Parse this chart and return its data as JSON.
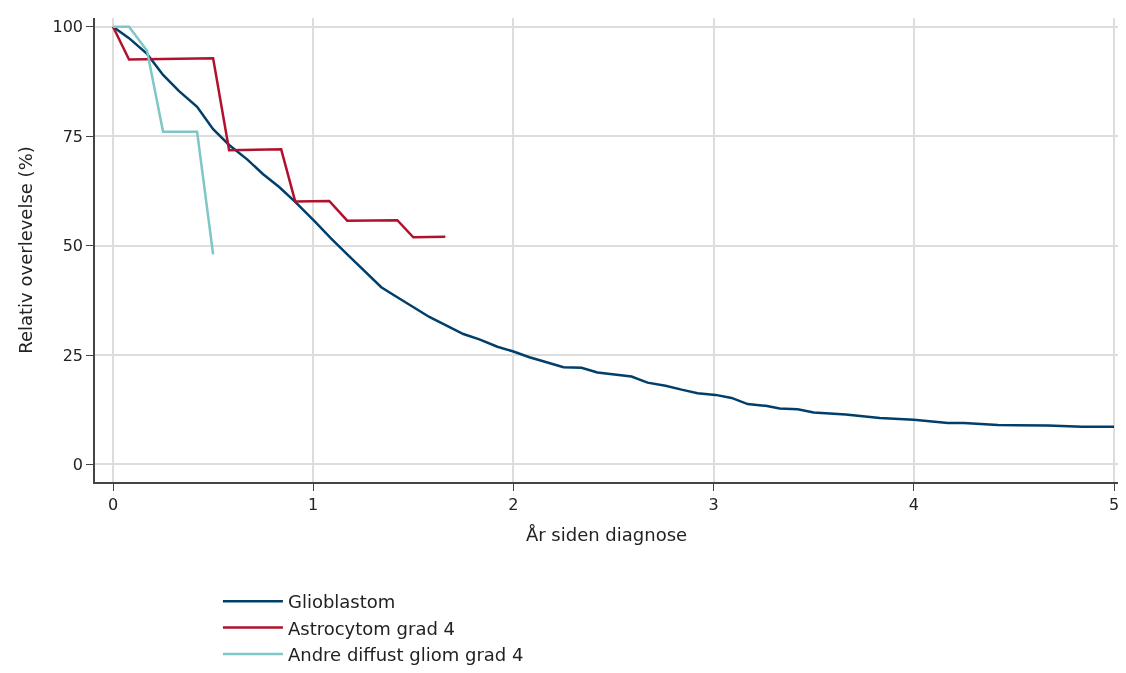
{
  "chart_data": {
    "type": "line",
    "xlabel": "År siden diagnose",
    "ylabel": "Relativ overlevelse (%)",
    "xlim": [
      -0.09,
      5.02
    ],
    "ylim": [
      -4,
      102
    ],
    "xticks": [
      0,
      1,
      2,
      3,
      4,
      5
    ],
    "yticks": [
      0,
      25,
      50,
      75,
      100
    ],
    "grid": true,
    "legend": "bottom",
    "marker": "none",
    "line_style": "solid",
    "series": [
      {
        "name": "Glioblastom",
        "color": "#003f6b",
        "x": [
          0,
          0.08,
          0.17,
          0.25,
          0.33,
          0.42,
          0.5,
          0.58,
          0.67,
          0.75,
          0.83,
          0.91,
          1.01,
          1.09,
          1.17,
          1.34,
          1.41,
          1.58,
          1.75,
          1.83,
          1.92,
          2.0,
          2.08,
          2.17,
          2.25,
          2.34,
          2.42,
          2.59,
          2.67,
          2.76,
          2.84,
          2.92,
          3.01,
          3.09,
          3.17,
          3.26,
          3.33,
          3.42,
          3.5,
          3.66,
          3.83,
          4.0,
          4.17,
          4.25,
          4.42,
          4.67,
          4.84,
          5.0
        ],
        "values": [
          100,
          97.4,
          93.8,
          89,
          85.3,
          81.7,
          76.6,
          73,
          69.7,
          66.3,
          63.4,
          60,
          55.4,
          51.6,
          48,
          40.5,
          38.5,
          33.7,
          29.8,
          28.6,
          26.9,
          25.8,
          24.5,
          23.3,
          22.2,
          22.1,
          21,
          20.1,
          18.7,
          18,
          17.1,
          16.3,
          15.9,
          15.2,
          13.8,
          13.4,
          12.8,
          12.6,
          11.9,
          11.4,
          10.6,
          10.2,
          9.5,
          9.5,
          9.0,
          8.9,
          8.6,
          8.6
        ]
      },
      {
        "name": "Astrocytom grad 4",
        "color": "#b0122e",
        "x": [
          0,
          0.08,
          0.5,
          0.58,
          0.84,
          0.91,
          1.08,
          1.17,
          1.42,
          1.5,
          1.66
        ],
        "values": [
          100,
          92.5,
          92.8,
          71.8,
          72.0,
          60.1,
          60.2,
          55.7,
          55.8,
          51.9,
          52.0
        ]
      },
      {
        "name": "Andre diffust gliom grad 4",
        "color": "#7fc6c6",
        "x": [
          0,
          0.08,
          0.17,
          0.25,
          0.42,
          0.5
        ],
        "values": [
          100,
          100,
          94.5,
          76.0,
          76.0,
          48.0
        ]
      }
    ]
  }
}
